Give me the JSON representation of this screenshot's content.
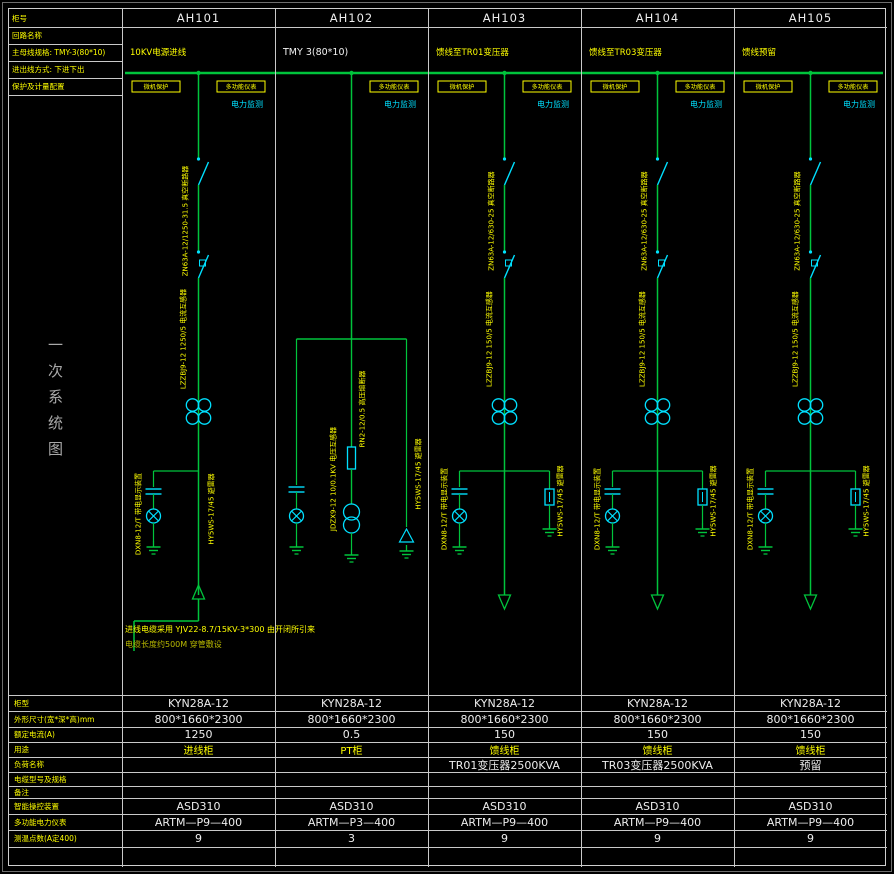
{
  "meta": {
    "bg": "#000000",
    "grid_color": "#c9c9c9",
    "green": "#00c43c",
    "cyan": "#00e0ff",
    "yellow": "#ffff00",
    "white": "#ededed",
    "gray": "#a9a9a9"
  },
  "vertical_title": "一次系统图",
  "header": {
    "corner_label": "柜号",
    "columns": [
      "AH101",
      "AH102",
      "AH103",
      "AH104",
      "AH105"
    ]
  },
  "left_top_labels": [
    "回路名称",
    "主母线规格: TMY-3(80*10)",
    "进出线方式: 下进下出",
    "保护及计量配置"
  ],
  "columns": [
    {
      "id": "AH101",
      "type": "incoming",
      "top_label": "10KV电源进线",
      "top_label_color": "yellow",
      "chips": [
        "微机保护",
        "多功能仪表"
      ],
      "monitor": "电力监测",
      "device_labels": [
        "ZN63A-12/1250-31.5 真空断路器",
        "LZZBJ9-12 1250/5 电流互感器",
        "DXN8-12/T 带电显示装置",
        "HY5WS-17/45 避雷器"
      ]
    },
    {
      "id": "AH102",
      "type": "pt",
      "top_label": "TMY 3(80*10)",
      "top_label_color": "white",
      "chips": [
        "多功能仪表"
      ],
      "monitor": "电力监测",
      "device_labels": [
        "RN2-12/0.5 高压熔断器",
        "JDZX9-12 10/0.1KV 电压互感器",
        "HY5WS-17/45 避雷器"
      ]
    },
    {
      "id": "AH103",
      "type": "feeder",
      "top_label": "馈线至TR01变压器",
      "top_label_color": "yellow",
      "chips": [
        "微机保护",
        "多功能仪表"
      ],
      "monitor": "电力监测",
      "device_labels": [
        "ZN63A-12/630-25 真空断路器",
        "LZZBJ9-12 150/5 电流互感器",
        "DXN8-12/T 带电显示装置",
        "HY5WS-17/45 避雷器"
      ]
    },
    {
      "id": "AH104",
      "type": "feeder",
      "top_label": "馈线至TR03变压器",
      "top_label_color": "yellow",
      "chips": [
        "微机保护",
        "多功能仪表"
      ],
      "monitor": "电力监测",
      "device_labels": [
        "ZN63A-12/630-25 真空断路器",
        "LZZBJ9-12 150/5 电流互感器",
        "DXN8-12/T 带电显示装置",
        "HY5WS-17/45 避雷器"
      ]
    },
    {
      "id": "AH105",
      "type": "feeder",
      "top_label": "馈线预留",
      "top_label_color": "yellow",
      "chips": [
        "微机保护",
        "多功能仪表"
      ],
      "monitor": "电力监测",
      "device_labels": [
        "ZN63A-12/630-25 真空断路器",
        "LZZBJ9-12 150/5 电流互感器",
        "DXN8-12/T 带电显示装置",
        "HY5WS-17/45 避雷器"
      ]
    }
  ],
  "notes": [
    "进线电缆采用 YJV22-8.7/15KV-3*300 由开闭所引来",
    "电缆长度约500M 穿管敷设"
  ],
  "bottom_table": {
    "rows": [
      {
        "label": "柜型",
        "color": "white",
        "values": [
          "KYN28A-12",
          "KYN28A-12",
          "KYN28A-12",
          "KYN28A-12",
          "KYN28A-12"
        ]
      },
      {
        "label": "外形尺寸(宽*深*高)mm",
        "color": "white",
        "values": [
          "800*1660*2300",
          "800*1660*2300",
          "800*1660*2300",
          "800*1660*2300",
          "800*1660*2300"
        ]
      },
      {
        "label": "额定电流(A)",
        "color": "white",
        "values": [
          "1250",
          "0.5",
          "150",
          "150",
          "150"
        ]
      },
      {
        "label": "用途",
        "color": "yellow",
        "values": [
          "进线柜",
          "PT柜",
          "馈线柜",
          "馈线柜",
          "馈线柜"
        ]
      },
      {
        "label": "负荷名称",
        "color": "white",
        "values": [
          "",
          "",
          "TR01变压器2500KVA",
          "TR03变压器2500KVA",
          "预留"
        ]
      },
      {
        "label": "电缆型号及规格",
        "color": "white",
        "values": [
          "",
          "",
          "",
          "",
          ""
        ]
      },
      {
        "label": "备注",
        "color": "white",
        "values": [
          "",
          "",
          "",
          "",
          ""
        ]
      },
      {
        "label": "智能操控装置",
        "color": "white",
        "values": [
          "ASD310",
          "ASD310",
          "ASD310",
          "ASD310",
          "ASD310"
        ]
      },
      {
        "label": "多功能电力仪表",
        "color": "white",
        "values": [
          "ARTM—P9—400",
          "ARTM—P3—400",
          "ARTM—P9—400",
          "ARTM—P9—400",
          "ARTM—P9—400"
        ]
      },
      {
        "label": "测温点数(A定400)",
        "color": "white",
        "values": [
          "9",
          "3",
          "9",
          "9",
          "9"
        ]
      }
    ]
  }
}
